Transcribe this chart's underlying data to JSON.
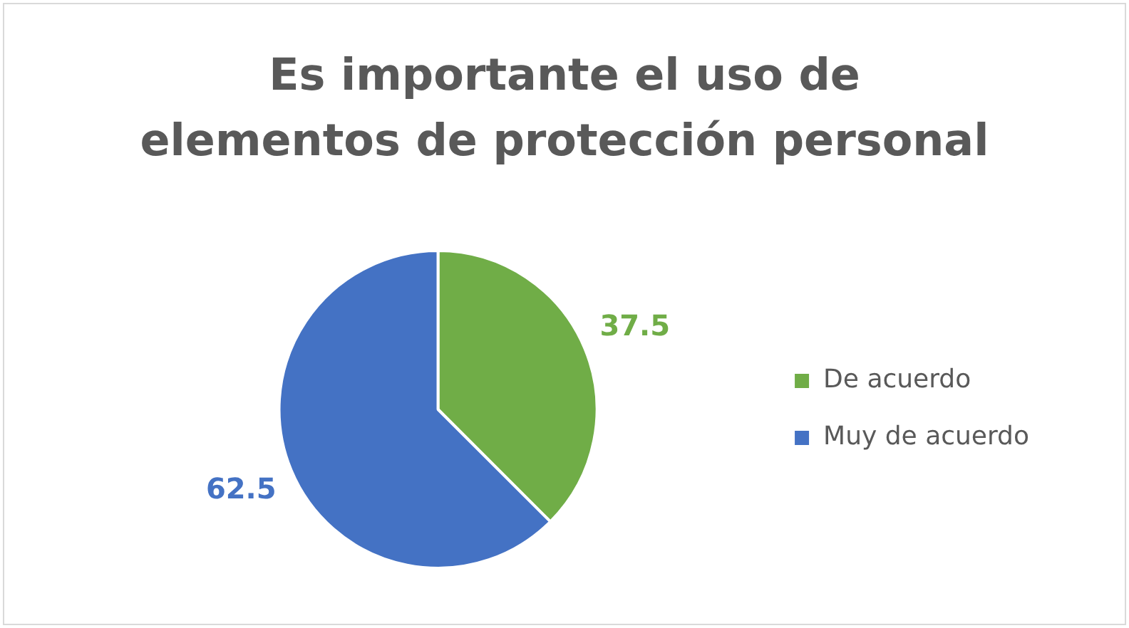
{
  "chart_data": {
    "type": "pie",
    "title": "Es importante el uso de elementos de protección personal",
    "categories": [
      "De acuerdo",
      "Muy de acuerdo"
    ],
    "values": [
      37.5,
      62.5
    ],
    "colors": [
      "#70ad47",
      "#4472c4"
    ],
    "data_labels": true,
    "legend": "right"
  }
}
